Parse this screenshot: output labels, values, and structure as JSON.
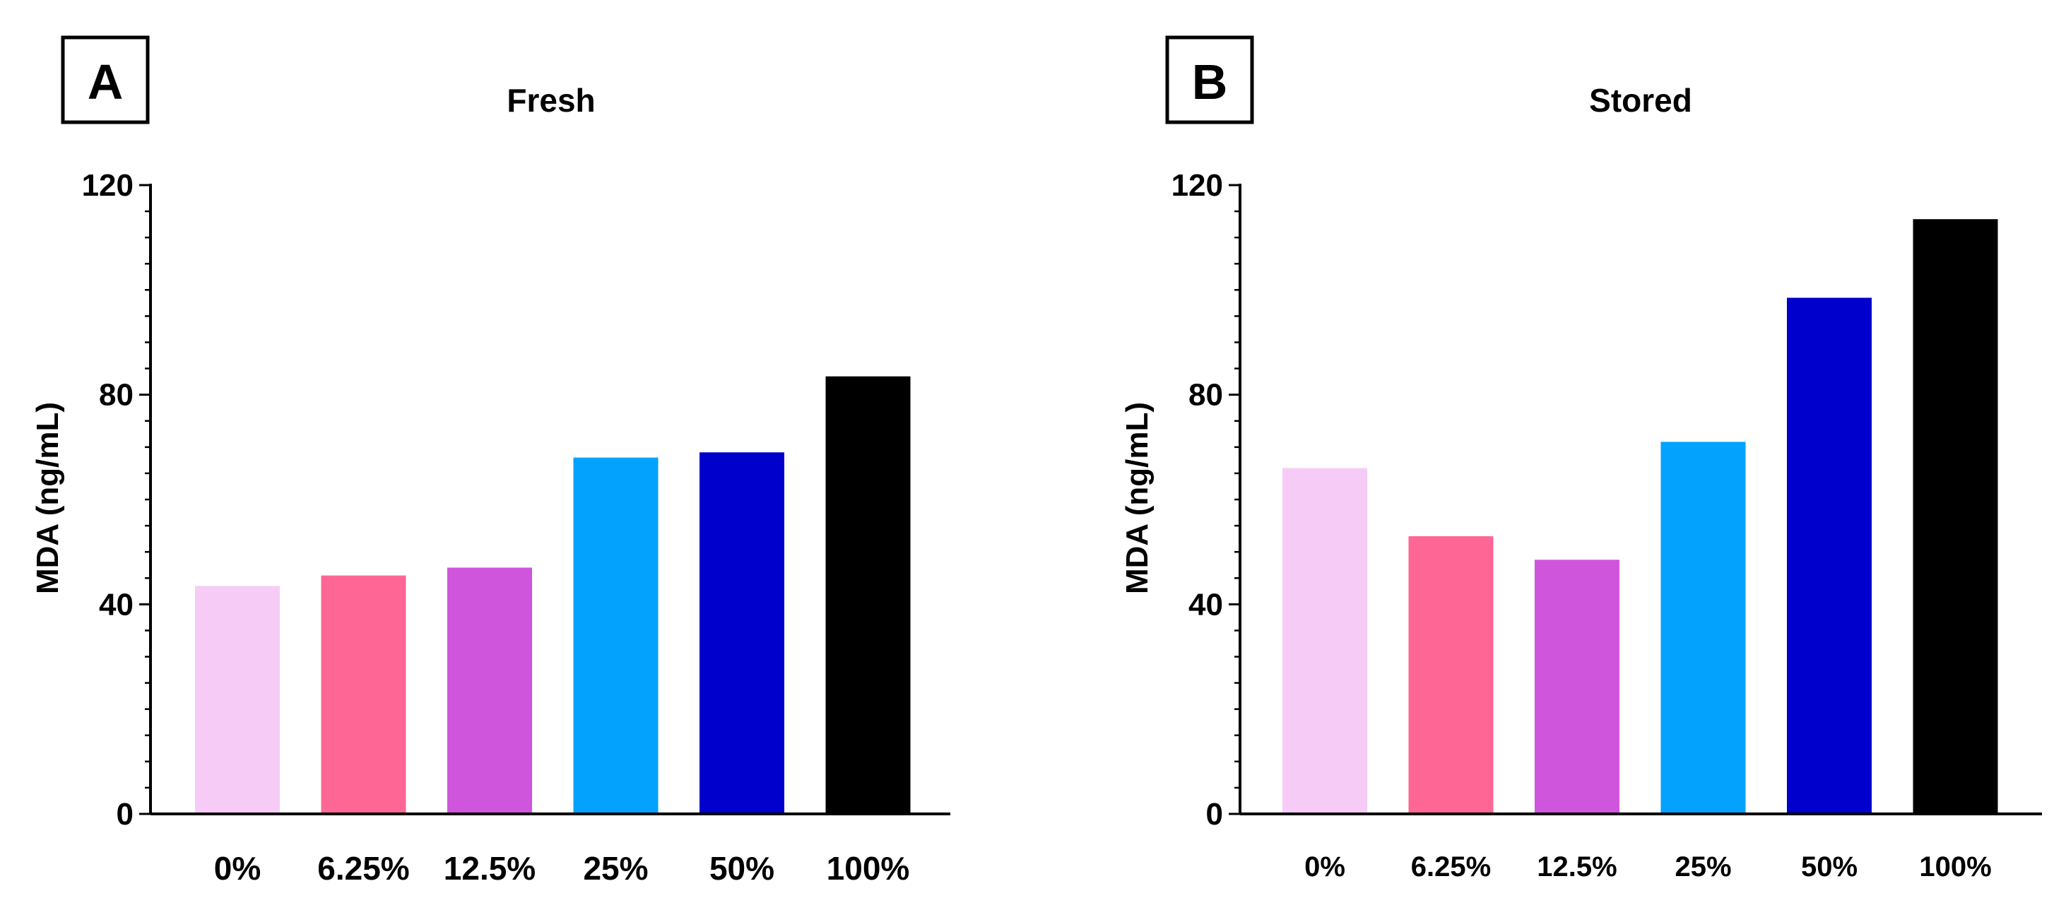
{
  "chart_data": [
    {
      "type": "bar",
      "panel": "A",
      "title": "Fresh",
      "xlabel": "",
      "ylabel": "MDA (ng/mL)",
      "ylim": [
        0,
        120
      ],
      "yticks": [
        "0",
        "40",
        "80",
        "120"
      ],
      "categories": [
        "0%",
        "6.25%",
        "12.5%",
        "25%",
        "50%",
        "100%"
      ],
      "values": [
        43.5,
        45.5,
        47,
        68,
        69,
        83.5
      ],
      "colors": [
        "#f6ccf6",
        "#fe6795",
        "#cf55dd",
        "#02a2fd",
        "#0000cc",
        "#000000"
      ]
    },
    {
      "type": "bar",
      "panel": "B",
      "title": "Stored",
      "xlabel": "",
      "ylabel": "MDA (ng/mL)",
      "ylim": [
        0,
        120
      ],
      "yticks": [
        "0",
        "40",
        "80",
        "120"
      ],
      "categories": [
        "0%",
        "6.25%",
        "12.5%",
        "25%",
        "50%",
        "100%"
      ],
      "values": [
        66,
        53,
        48.5,
        71,
        98.5,
        113.5
      ],
      "colors": [
        "#f6ccf6",
        "#fe6795",
        "#cf55dd",
        "#02a2fd",
        "#0000cc",
        "#000000"
      ]
    }
  ]
}
